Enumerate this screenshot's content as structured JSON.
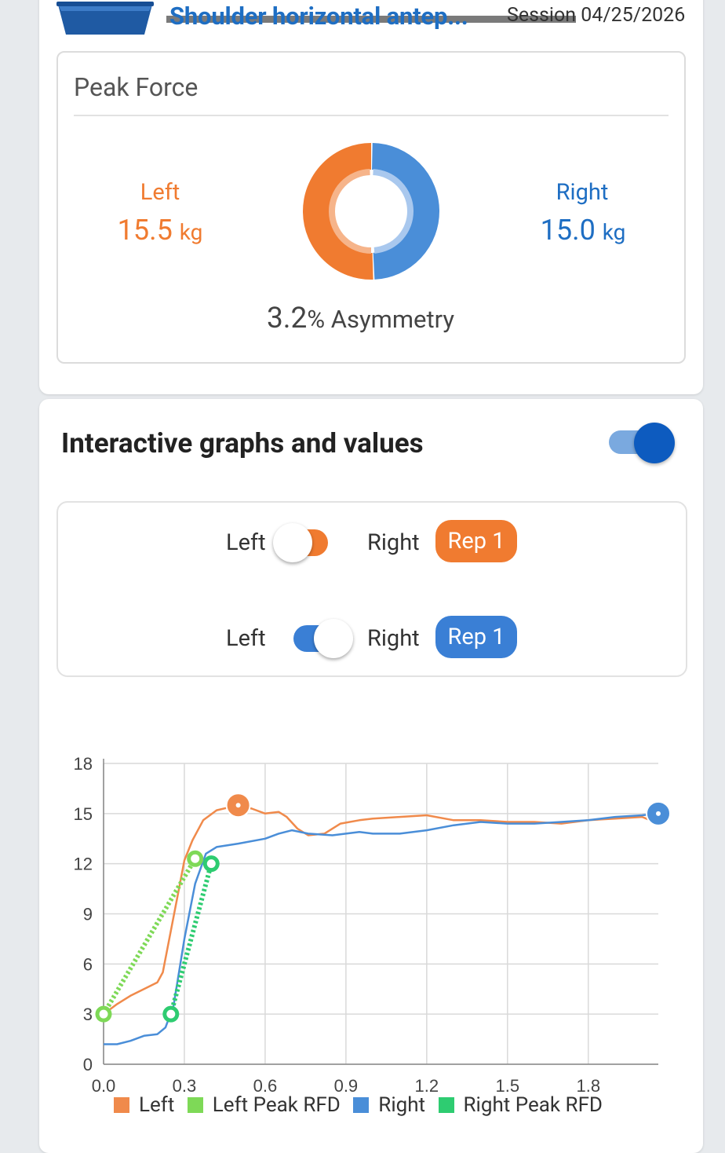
{
  "header": {
    "exercise_title": "Shoulder horizontal antep...",
    "session_label": "Session 04/25/2026"
  },
  "peak_force": {
    "title": "Peak Force",
    "left_label": "Left",
    "left_value": "15.5",
    "left_unit": "kg",
    "right_label": "Right",
    "right_value": "15.0",
    "right_unit": "kg",
    "asymmetry_value": "3.2",
    "asymmetry_suffix": "% Asymmetry",
    "left_share": 0.508,
    "right_share": 0.492
  },
  "graphs": {
    "title": "Interactive graphs and values",
    "enabled": true,
    "rows": [
      {
        "left_label": "Left",
        "right_label": "Right",
        "toggle_side": "right",
        "rep_label": "Rep 1",
        "color": "#f07b30"
      },
      {
        "left_label": "Left",
        "right_label": "Right",
        "toggle_side": "left",
        "rep_label": "Rep 1",
        "color": "#3a7fd5"
      }
    ]
  },
  "colors": {
    "left": "#f08a4b",
    "left_peak_rfd": "#7ed957",
    "right": "#4a8ed8",
    "right_peak_rfd": "#2ecc71"
  },
  "chart_data": {
    "type": "line",
    "x_ticks": [
      "0.0",
      "0.3",
      "0.6",
      "0.9",
      "1.2",
      "1.5",
      "1.8"
    ],
    "y_ticks": [
      "0",
      "3",
      "6",
      "9",
      "12",
      "15",
      "18"
    ],
    "xlim": [
      0,
      2.06
    ],
    "ylim": [
      0,
      18
    ],
    "grid": true,
    "legend_position": "bottom",
    "series": [
      {
        "name": "Left",
        "color": "#f08a4b",
        "points": [
          [
            0.0,
            3.0
          ],
          [
            0.05,
            3.6
          ],
          [
            0.1,
            4.1
          ],
          [
            0.15,
            4.5
          ],
          [
            0.2,
            4.9
          ],
          [
            0.22,
            5.5
          ],
          [
            0.25,
            8.0
          ],
          [
            0.28,
            10.5
          ],
          [
            0.3,
            12.2
          ],
          [
            0.33,
            13.4
          ],
          [
            0.37,
            14.6
          ],
          [
            0.42,
            15.2
          ],
          [
            0.5,
            15.5
          ],
          [
            0.55,
            15.3
          ],
          [
            0.6,
            15.0
          ],
          [
            0.65,
            15.1
          ],
          [
            0.68,
            14.8
          ],
          [
            0.72,
            14.1
          ],
          [
            0.76,
            13.7
          ],
          [
            0.82,
            13.8
          ],
          [
            0.88,
            14.4
          ],
          [
            0.95,
            14.6
          ],
          [
            1.0,
            14.7
          ],
          [
            1.1,
            14.8
          ],
          [
            1.2,
            14.9
          ],
          [
            1.3,
            14.6
          ],
          [
            1.4,
            14.6
          ],
          [
            1.5,
            14.5
          ],
          [
            1.6,
            14.5
          ],
          [
            1.7,
            14.4
          ],
          [
            1.8,
            14.6
          ],
          [
            1.9,
            14.7
          ],
          [
            2.0,
            14.8
          ],
          [
            2.03,
            14.6
          ]
        ]
      },
      {
        "name": "Right",
        "color": "#4a8ed8",
        "points": [
          [
            0.0,
            1.2
          ],
          [
            0.05,
            1.2
          ],
          [
            0.1,
            1.4
          ],
          [
            0.15,
            1.7
          ],
          [
            0.2,
            1.8
          ],
          [
            0.23,
            2.2
          ],
          [
            0.26,
            3.5
          ],
          [
            0.3,
            7.5
          ],
          [
            0.34,
            10.8
          ],
          [
            0.38,
            12.6
          ],
          [
            0.42,
            13.0
          ],
          [
            0.5,
            13.2
          ],
          [
            0.6,
            13.5
          ],
          [
            0.65,
            13.8
          ],
          [
            0.7,
            14.0
          ],
          [
            0.76,
            13.8
          ],
          [
            0.85,
            13.7
          ],
          [
            0.95,
            13.9
          ],
          [
            1.0,
            13.8
          ],
          [
            1.1,
            13.8
          ],
          [
            1.2,
            14.0
          ],
          [
            1.3,
            14.3
          ],
          [
            1.4,
            14.5
          ],
          [
            1.5,
            14.4
          ],
          [
            1.6,
            14.4
          ],
          [
            1.7,
            14.5
          ],
          [
            1.8,
            14.6
          ],
          [
            1.9,
            14.8
          ],
          [
            2.0,
            14.9
          ],
          [
            2.06,
            15.0
          ]
        ]
      },
      {
        "name": "Left Peak RFD",
        "color": "#7ed957",
        "dashed": true,
        "points": [
          [
            0.0,
            3.0
          ],
          [
            0.34,
            12.3
          ]
        ]
      },
      {
        "name": "Right Peak RFD",
        "color": "#2ecc71",
        "dashed": true,
        "points": [
          [
            0.25,
            3.0
          ],
          [
            0.4,
            12.0
          ]
        ]
      }
    ],
    "markers": [
      {
        "series": "Left",
        "x": 0.5,
        "y": 15.5,
        "color": "#f08a4b"
      },
      {
        "series": "Right",
        "x": 2.06,
        "y": 15.0,
        "color": "#4a8ed8"
      },
      {
        "series": "Left Peak RFD",
        "x": 0.0,
        "y": 3.0,
        "color": "#7ed957"
      },
      {
        "series": "Left Peak RFD",
        "x": 0.34,
        "y": 12.3,
        "color": "#7ed957"
      },
      {
        "series": "Right Peak RFD",
        "x": 0.25,
        "y": 3.0,
        "color": "#2ecc71"
      },
      {
        "series": "Right Peak RFD",
        "x": 0.4,
        "y": 12.0,
        "color": "#2ecc71"
      }
    ]
  }
}
